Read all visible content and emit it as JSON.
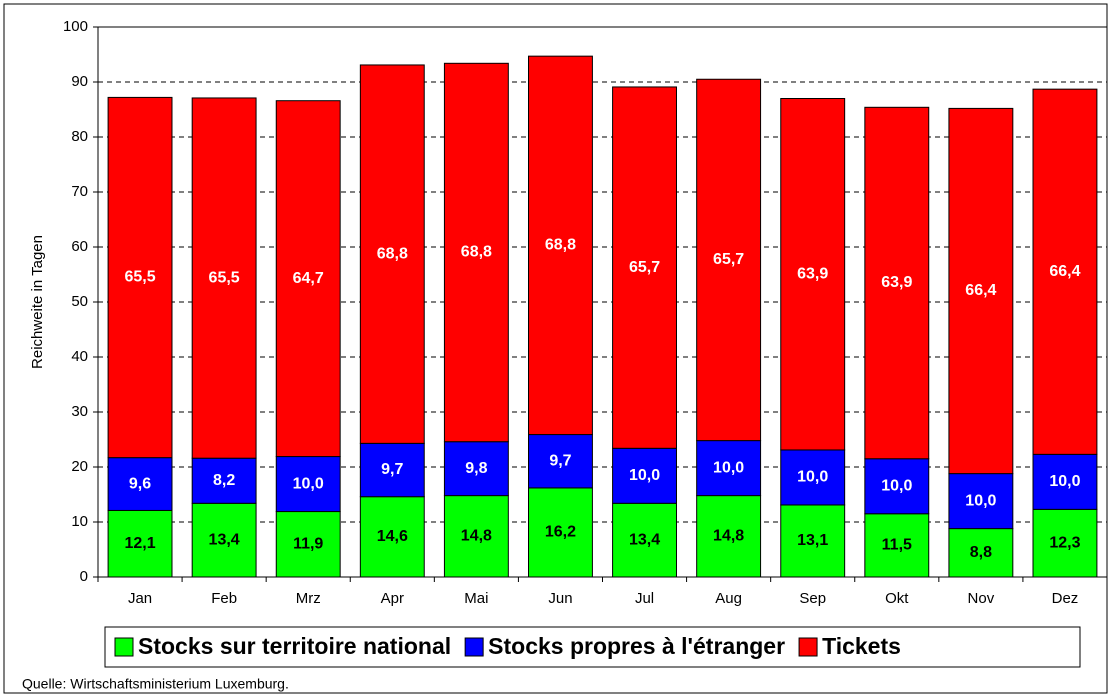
{
  "chart_data": {
    "type": "stacked_bar",
    "y_label": "Reichweite in Tagen",
    "source": "Quelle: Wirtschaftsministerium Luxemburg.",
    "categories": [
      "Jan",
      "Feb",
      "Mrz",
      "Apr",
      "Mai",
      "Jun",
      "Jul",
      "Aug",
      "Sep",
      "Okt",
      "Nov",
      "Dez"
    ],
    "series": [
      {
        "name": "Stocks sur territoire national",
        "color": "#00ff00",
        "label_color": "#000000",
        "values": [
          12.1,
          13.4,
          11.9,
          14.6,
          14.8,
          16.2,
          13.4,
          14.8,
          13.1,
          11.5,
          8.8,
          12.3
        ],
        "value_labels": [
          "12,1",
          "13,4",
          "11,9",
          "14,6",
          "14,8",
          "16,2",
          "13,4",
          "14,8",
          "13,1",
          "11,5",
          "8,8",
          "12,3"
        ]
      },
      {
        "name": "Stocks propres à l'étranger",
        "color": "#0000ff",
        "label_color": "#ffffff",
        "values": [
          9.6,
          8.2,
          10.0,
          9.7,
          9.8,
          9.7,
          10.0,
          10.0,
          10.0,
          10.0,
          10.0,
          10.0
        ],
        "value_labels": [
          "9,6",
          "8,2",
          "10,0",
          "9,7",
          "9,8",
          "9,7",
          "10,0",
          "10,0",
          "10,0",
          "10,0",
          "10,0",
          "10,0"
        ]
      },
      {
        "name": "Tickets",
        "color": "#ff0000",
        "label_color": "#ffffff",
        "values": [
          65.5,
          65.5,
          64.7,
          68.8,
          68.8,
          68.8,
          65.7,
          65.7,
          63.9,
          63.9,
          66.4,
          66.4
        ],
        "value_labels": [
          "65,5",
          "65,5",
          "64,7",
          "68,8",
          "68,8",
          "68,8",
          "65,7",
          "65,7",
          "63,9",
          "63,9",
          "66,4",
          "66,4"
        ]
      }
    ],
    "ylim": [
      0,
      100
    ],
    "yticks": [
      0,
      10,
      20,
      30,
      40,
      50,
      60,
      70,
      80,
      90,
      100
    ],
    "grid": true,
    "legend": "bottom"
  }
}
